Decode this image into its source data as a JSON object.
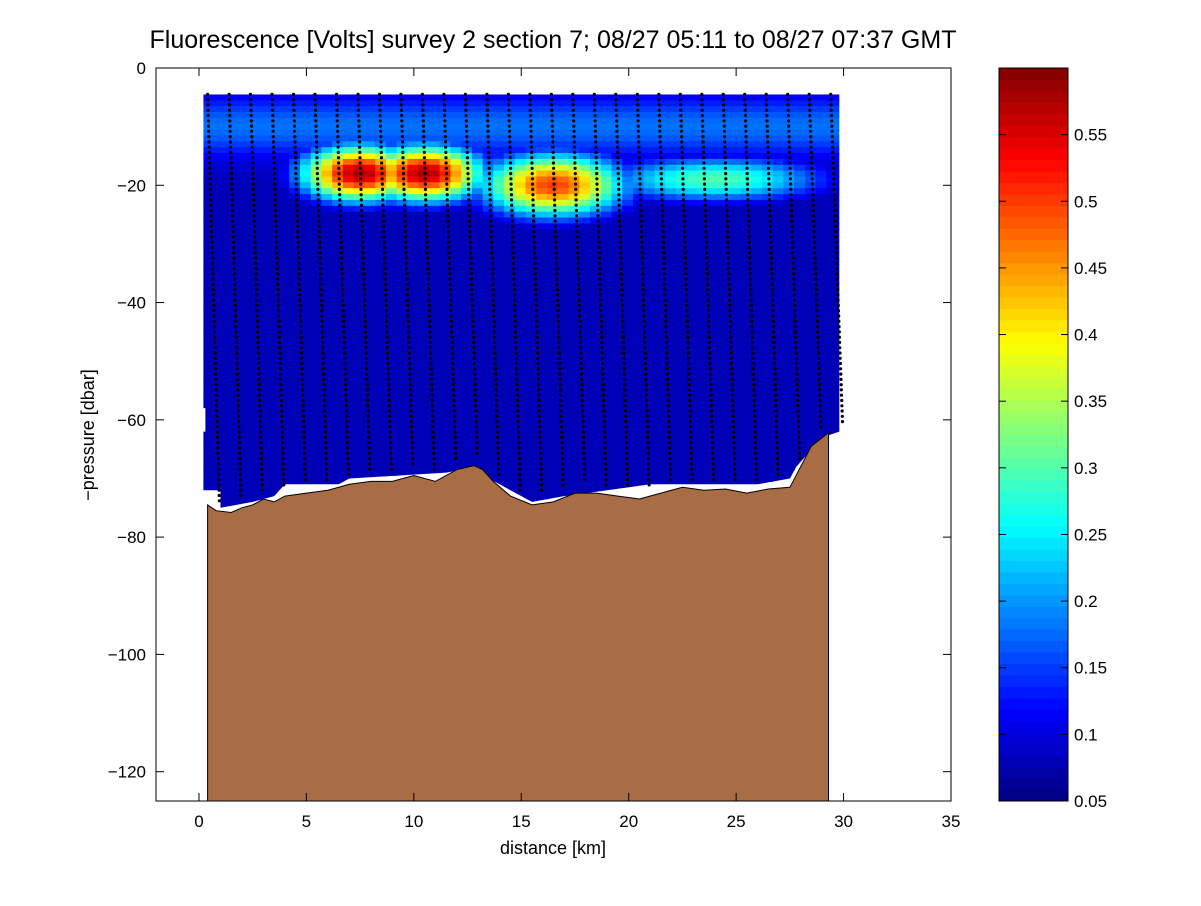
{
  "chart_data": {
    "type": "heatmap",
    "title": "Fluorescence [Volts] survey 2 section 7; 08/27 05:11 to 08/27 07:37 GMT",
    "xlabel": "distance [km]",
    "ylabel": "−pressure [dbar]",
    "xlim": [
      -2,
      35
    ],
    "ylim": [
      -125,
      0
    ],
    "x_ticks": [
      {
        "value": 0,
        "label": "0"
      },
      {
        "value": 5,
        "label": "5"
      },
      {
        "value": 10,
        "label": "10"
      },
      {
        "value": 15,
        "label": "15"
      },
      {
        "value": 20,
        "label": "20"
      },
      {
        "value": 25,
        "label": "25"
      },
      {
        "value": 30,
        "label": "30"
      },
      {
        "value": 35,
        "label": "35"
      }
    ],
    "y_ticks": [
      {
        "value": 0,
        "label": "0"
      },
      {
        "value": -20,
        "label": "−20"
      },
      {
        "value": -40,
        "label": "−40"
      },
      {
        "value": -60,
        "label": "−60"
      },
      {
        "value": -80,
        "label": "−80"
      },
      {
        "value": -100,
        "label": "−100"
      },
      {
        "value": -120,
        "label": "−120"
      }
    ],
    "colorbar": {
      "colormap": "jet",
      "range": [
        0.05,
        0.6
      ],
      "ticks": [
        {
          "value": 0.05,
          "label": "0.05"
        },
        {
          "value": 0.1,
          "label": "0.1"
        },
        {
          "value": 0.15,
          "label": "0.15"
        },
        {
          "value": 0.2,
          "label": "0.2"
        },
        {
          "value": 0.25,
          "label": "0.25"
        },
        {
          "value": 0.3,
          "label": "0.3"
        },
        {
          "value": 0.35,
          "label": "0.35"
        },
        {
          "value": 0.4,
          "label": "0.4"
        },
        {
          "value": 0.45,
          "label": "0.45"
        },
        {
          "value": 0.5,
          "label": "0.5"
        },
        {
          "value": 0.55,
          "label": "0.55"
        }
      ]
    },
    "field": {
      "x_range": [
        0.2,
        29.8
      ],
      "top_depth": -4.5,
      "background_value": 0.08,
      "surface_layer": {
        "center_depth": -10,
        "width": 5,
        "value": 0.18
      },
      "chlorophyll_max_peaks": [
        {
          "x": 7.5,
          "depth": -18,
          "sigma_x": 2.0,
          "sigma_z": 3.5,
          "value": 0.58
        },
        {
          "x": 10.5,
          "depth": -18,
          "sigma_x": 2.0,
          "sigma_z": 3.5,
          "value": 0.58
        },
        {
          "x": 16.5,
          "depth": -20,
          "sigma_x": 2.5,
          "sigma_z": 4.0,
          "value": 0.5
        },
        {
          "x": 24,
          "depth": -19,
          "sigma_x": 4.0,
          "sigma_z": 3.0,
          "value": 0.3
        }
      ],
      "bottom_edge_depth": [
        [
          0.2,
          -58
        ],
        [
          0.3,
          -58
        ],
        [
          0.3,
          -62
        ],
        [
          0.2,
          -62
        ],
        [
          0.2,
          -72
        ],
        [
          1.0,
          -72
        ],
        [
          1.0,
          -75
        ],
        [
          2.5,
          -74
        ],
        [
          3.5,
          -73
        ],
        [
          4.0,
          -71
        ],
        [
          6.5,
          -71
        ],
        [
          7.0,
          -70
        ],
        [
          11.5,
          -69
        ],
        [
          13.0,
          -68
        ],
        [
          13.5,
          -70
        ],
        [
          14.5,
          -72
        ],
        [
          15.5,
          -74
        ],
        [
          17.0,
          -73
        ],
        [
          19.0,
          -72
        ],
        [
          21.0,
          -71
        ],
        [
          26.0,
          -71
        ],
        [
          27.5,
          -70
        ],
        [
          27.8,
          -68
        ],
        [
          29.0,
          -63
        ],
        [
          29.8,
          -62
        ],
        [
          29.8,
          -4.5
        ]
      ]
    },
    "seafloor": {
      "color": "#a96d46",
      "depth_profile": [
        [
          0.4,
          -74.5
        ],
        [
          0.8,
          -75.5
        ],
        [
          1.5,
          -75.8
        ],
        [
          2.0,
          -75
        ],
        [
          2.5,
          -74.5
        ],
        [
          3.0,
          -73.5
        ],
        [
          3.5,
          -74
        ],
        [
          4.0,
          -73
        ],
        [
          5.0,
          -72.5
        ],
        [
          6.0,
          -72
        ],
        [
          7.0,
          -71
        ],
        [
          8.0,
          -70.5
        ],
        [
          9.0,
          -70.5
        ],
        [
          10.0,
          -69.5
        ],
        [
          11.0,
          -70.5
        ],
        [
          12.0,
          -68.5
        ],
        [
          12.8,
          -67.8
        ],
        [
          13.2,
          -68.5
        ],
        [
          13.7,
          -70.5
        ],
        [
          14.5,
          -73
        ],
        [
          15.5,
          -74.5
        ],
        [
          16.5,
          -74
        ],
        [
          17.5,
          -72.5
        ],
        [
          18.5,
          -72.5
        ],
        [
          19.5,
          -73
        ],
        [
          20.5,
          -73.5
        ],
        [
          21.5,
          -72.5
        ],
        [
          22.5,
          -71.5
        ],
        [
          23.5,
          -72
        ],
        [
          24.5,
          -71.8
        ],
        [
          25.5,
          -72.5
        ],
        [
          26.5,
          -71.8
        ],
        [
          27.5,
          -71.5
        ],
        [
          28.0,
          -68
        ],
        [
          28.5,
          -64.5
        ],
        [
          29.3,
          -62.2
        ]
      ],
      "bottom_depth": -125
    },
    "casts": {
      "x_start": 0.4,
      "x_end": 29.4,
      "count": 30,
      "top_depth": -4.5,
      "sample_spacing_dbar": 0.9,
      "marker": "black dots"
    }
  }
}
